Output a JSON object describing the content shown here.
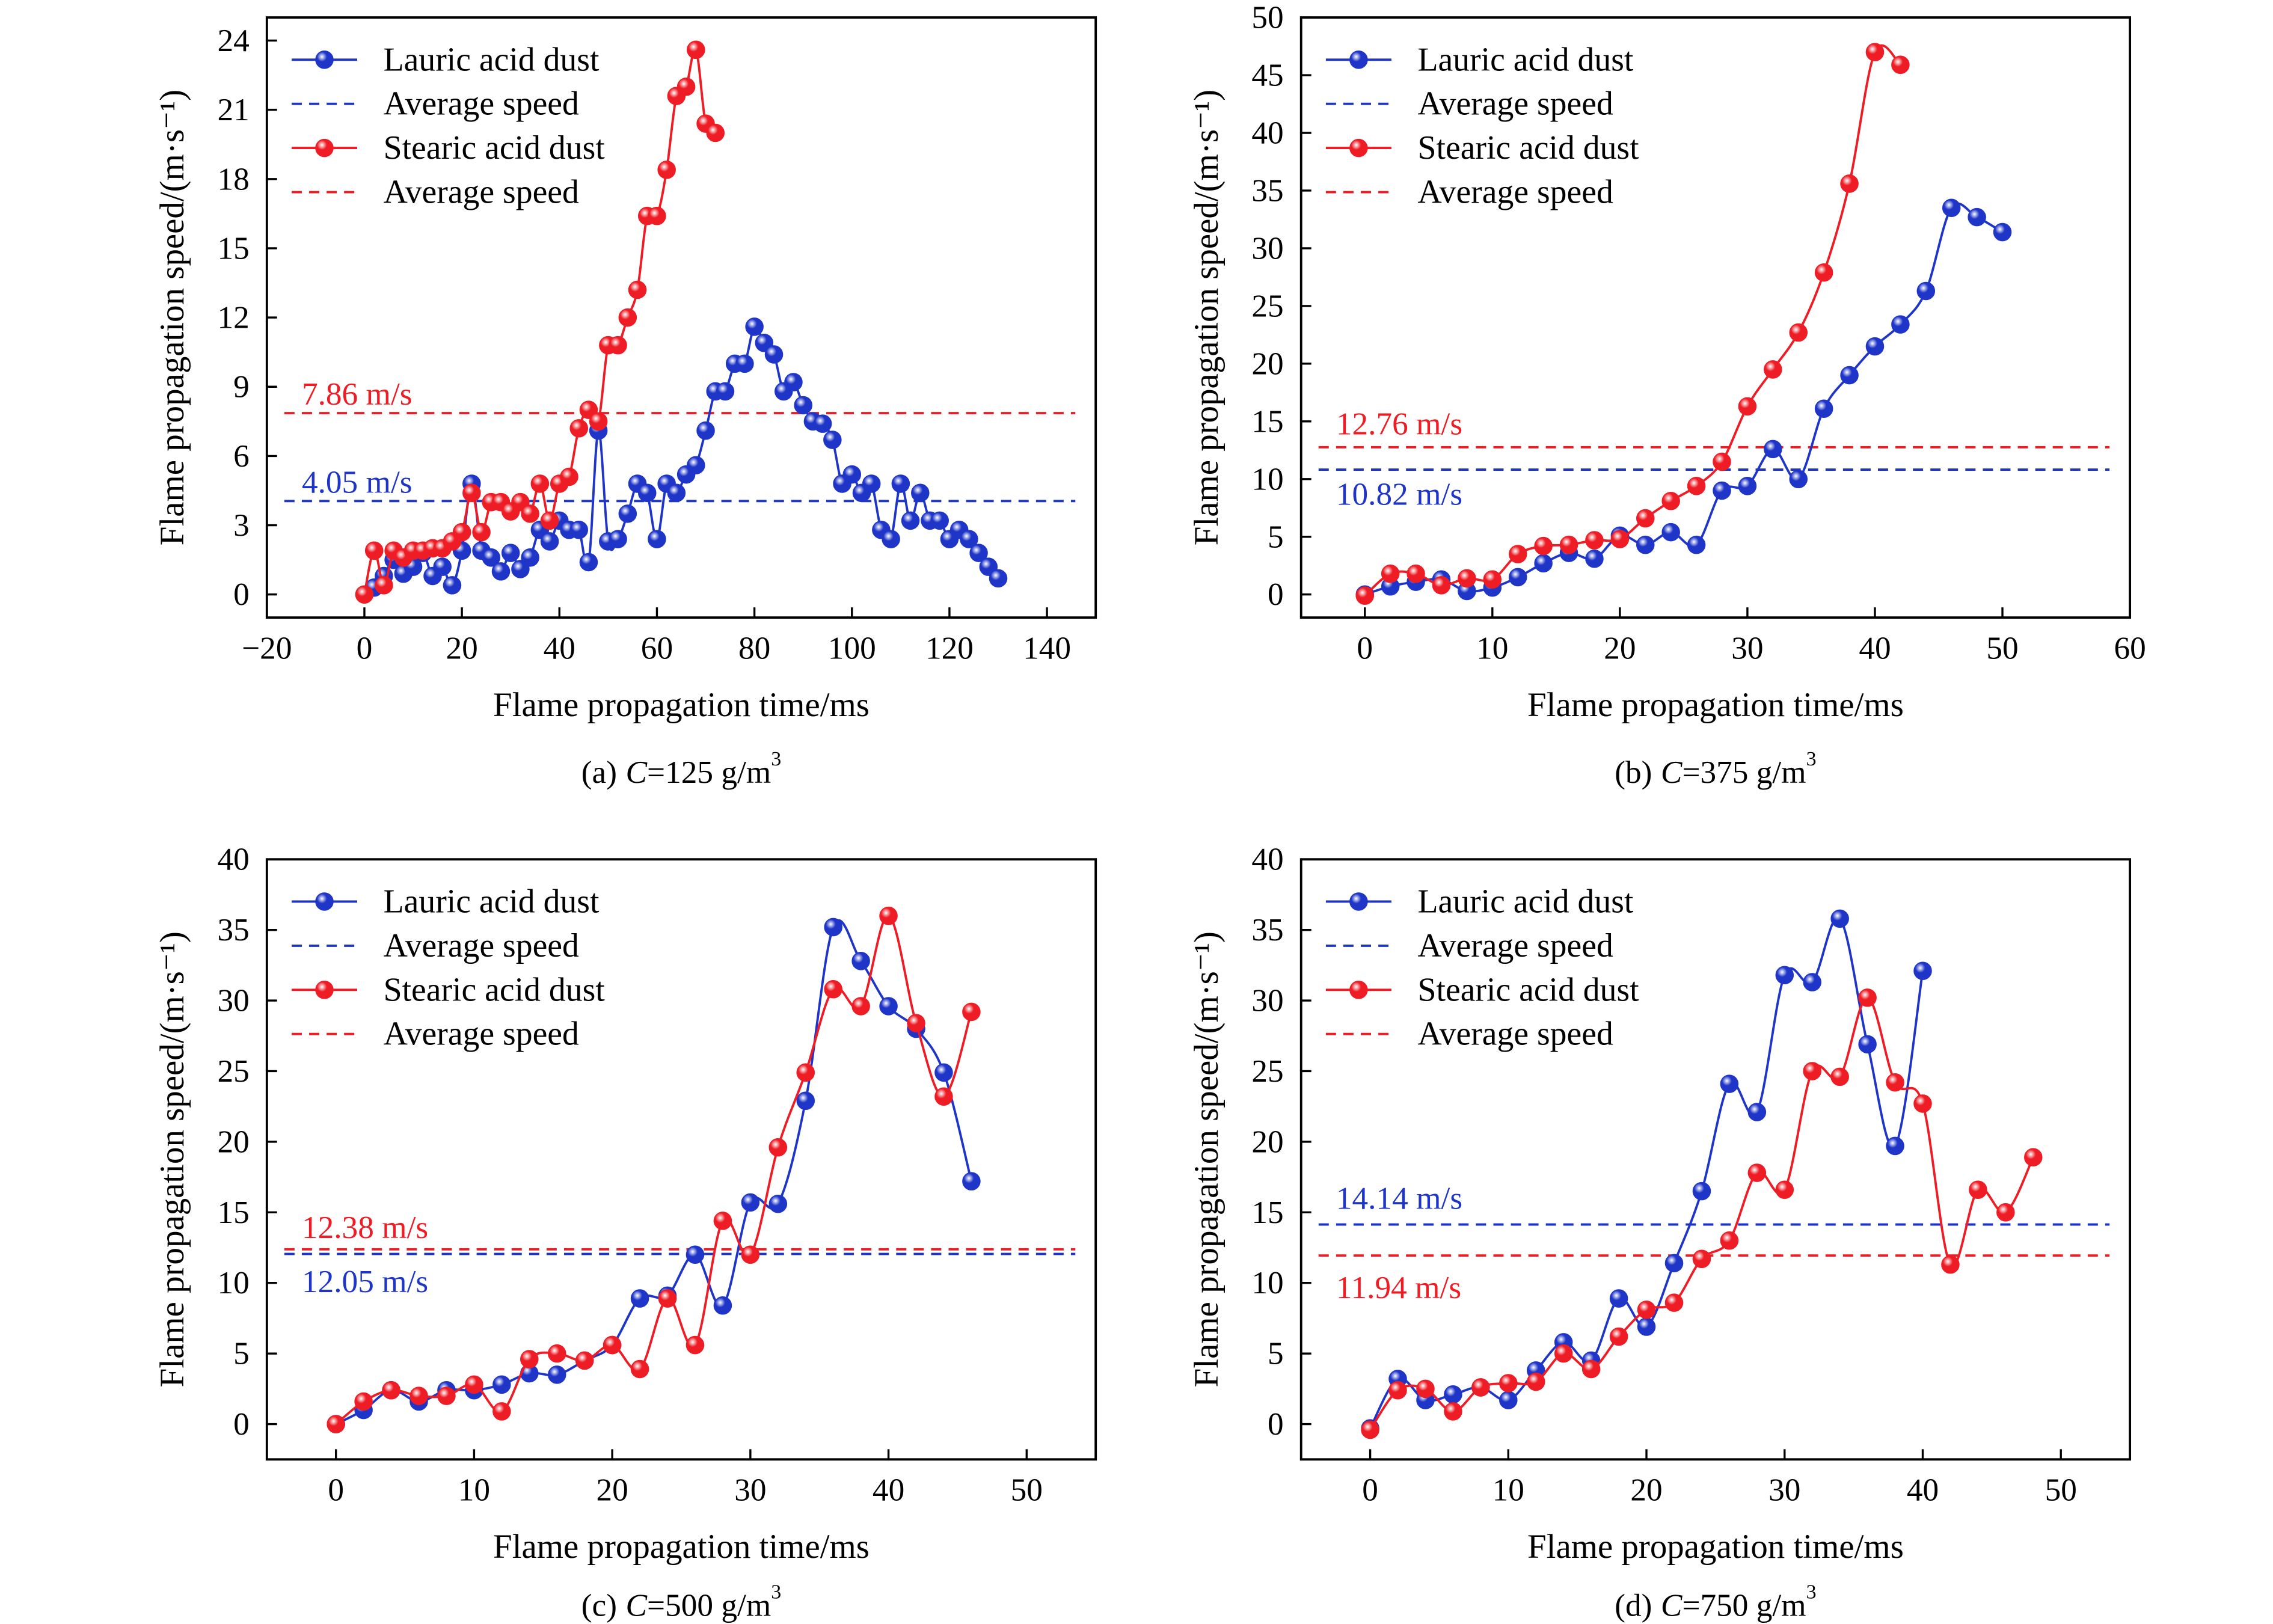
{
  "chart_data": [
    {
      "type": "line",
      "xlabel": "Flame propagation time/ms",
      "ylabel": "Flame propagation speed/(m·s⁻¹)",
      "xlim": [
        -20,
        150
      ],
      "ylim": [
        -1,
        25
      ],
      "xticks": [
        "−20",
        "0",
        "20",
        "40",
        "60",
        "80",
        "100",
        "120",
        "140"
      ],
      "yticks": [
        "0",
        "3",
        "6",
        "9",
        "12",
        "15",
        "18",
        "21",
        "24"
      ],
      "grid": false,
      "legend": {
        "placement": "top-left"
      },
      "series": [
        {
          "name": "Lauric acid dust",
          "color": "#1f35c8",
          "x": [
            2,
            4,
            6,
            8,
            10,
            12,
            14,
            16,
            18,
            20,
            22,
            24,
            26,
            28,
            30,
            32,
            34,
            36,
            38,
            40,
            42,
            44,
            46,
            48,
            50,
            52,
            54,
            56,
            58,
            60,
            62,
            64,
            66,
            68,
            70,
            72,
            74,
            76,
            78,
            80,
            82,
            84,
            86,
            88,
            90,
            92,
            94,
            96,
            98,
            100,
            102,
            104,
            106,
            108,
            110,
            112,
            114,
            116,
            118,
            120,
            122,
            124,
            126,
            128,
            130
          ],
          "values": [
            0.3,
            0.8,
            1.5,
            0.9,
            1.2,
            1.8,
            0.8,
            1.2,
            0.4,
            1.9,
            4.8,
            1.9,
            1.6,
            1.0,
            1.8,
            1.1,
            1.6,
            2.8,
            2.3,
            3.2,
            2.8,
            2.8,
            1.4,
            7.1,
            2.3,
            2.4,
            3.5,
            4.8,
            4.4,
            2.4,
            4.8,
            4.4,
            5.2,
            5.6,
            7.1,
            8.8,
            8.8,
            10.0,
            10.0,
            11.6,
            10.9,
            10.4,
            8.8,
            9.2,
            8.2,
            7.5,
            7.4,
            6.7,
            4.8,
            5.2,
            4.4,
            4.8,
            2.8,
            2.4,
            4.8,
            3.2,
            4.4,
            3.2,
            3.2,
            2.4,
            2.8,
            2.4,
            1.8,
            1.2,
            0.7
          ],
          "average": {
            "name": "Average speed",
            "value": 4.05,
            "label": "4.05 m/s"
          }
        },
        {
          "name": "Stearic acid dust",
          "color": "#ee1c25",
          "x": [
            0,
            2,
            4,
            6,
            8,
            10,
            12,
            14,
            16,
            18,
            20,
            22,
            24,
            26,
            28,
            30,
            32,
            34,
            36,
            38,
            40,
            42,
            44,
            46,
            48,
            50,
            52,
            54,
            56,
            58,
            60,
            62,
            64,
            66,
            68,
            70,
            72
          ],
          "values": [
            0,
            1.9,
            0.4,
            1.9,
            1.6,
            1.9,
            1.9,
            2.0,
            2.0,
            2.3,
            2.7,
            4.4,
            2.7,
            4.0,
            4.0,
            3.6,
            4.0,
            3.5,
            4.8,
            3.2,
            4.8,
            5.1,
            7.2,
            8.0,
            7.5,
            10.8,
            10.8,
            12.0,
            13.2,
            16.4,
            16.4,
            18.4,
            21.6,
            22.0,
            23.6,
            20.4,
            20.0
          ],
          "average": {
            "name": "Average speed",
            "value": 7.86,
            "label": "7.86 m/s"
          }
        }
      ],
      "caption": {
        "label": "(a)",
        "variable": "C",
        "value": "=125 g/m",
        "exponent": "3"
      }
    },
    {
      "type": "line",
      "xlabel": "Flame propagation time/ms",
      "ylabel": "Flame propagation speed/(m·s⁻¹)",
      "xlim": [
        -5,
        60
      ],
      "ylim": [
        -2,
        50
      ],
      "xticks": [
        "0",
        "10",
        "20",
        "30",
        "40",
        "50",
        "60"
      ],
      "yticks": [
        "0",
        "5",
        "10",
        "15",
        "20",
        "25",
        "30",
        "35",
        "40",
        "45",
        "50"
      ],
      "grid": false,
      "legend": {
        "placement": "top-left"
      },
      "series": [
        {
          "name": "Lauric acid dust",
          "color": "#1f35c8",
          "x": [
            0,
            2,
            4,
            6,
            8,
            10,
            12,
            14,
            16,
            18,
            20,
            22,
            24,
            26,
            28,
            30,
            32,
            34,
            36,
            38,
            40,
            42,
            44,
            46,
            48,
            50
          ],
          "values": [
            0,
            0.7,
            1.1,
            1.3,
            0.3,
            0.6,
            1.5,
            2.7,
            3.6,
            3.1,
            5.1,
            4.3,
            5.4,
            4.3,
            9.0,
            9.4,
            12.6,
            10.0,
            16.1,
            19.0,
            21.5,
            23.4,
            26.3,
            33.5,
            32.7,
            31.4
          ],
          "average": {
            "name": "Average speed",
            "value": 10.82,
            "label": "10.82 m/s"
          }
        },
        {
          "name": "Stearic acid dust",
          "color": "#ee1c25",
          "x": [
            0,
            2,
            4,
            6,
            8,
            10,
            12,
            14,
            16,
            18,
            20,
            22,
            24,
            26,
            28,
            30,
            32,
            34,
            36,
            38,
            40,
            42
          ],
          "values": [
            -0.1,
            1.8,
            1.8,
            0.8,
            1.4,
            1.3,
            3.5,
            4.2,
            4.3,
            4.7,
            4.8,
            6.6,
            8.1,
            9.4,
            11.5,
            16.3,
            19.5,
            22.7,
            27.9,
            35.6,
            47.0,
            45.9
          ],
          "average": {
            "name": "Average speed",
            "value": 12.76,
            "label": "12.76 m/s"
          }
        }
      ],
      "caption": {
        "label": "(b)",
        "variable": "C",
        "value": "=375 g/m",
        "exponent": "3"
      }
    },
    {
      "type": "line",
      "xlabel": "Flame propagation time/ms",
      "ylabel": "Flame propagation speed/(m·s⁻¹)",
      "xlim": [
        -5,
        55
      ],
      "ylim": [
        -2.5,
        40
      ],
      "xticks": [
        "0",
        "10",
        "20",
        "30",
        "40",
        "50"
      ],
      "yticks": [
        "0",
        "5",
        "10",
        "15",
        "20",
        "25",
        "30",
        "35",
        "40"
      ],
      "grid": false,
      "legend": {
        "placement": "top-left"
      },
      "series": [
        {
          "name": "Lauric acid dust",
          "color": "#1f35c8",
          "x": [
            0,
            2,
            4,
            6,
            8,
            10,
            12,
            14,
            16,
            18,
            20,
            22,
            24,
            26,
            28,
            30,
            32,
            34,
            36,
            38,
            40,
            42,
            44,
            46
          ],
          "values": [
            0,
            1.0,
            2.4,
            1.6,
            2.4,
            2.4,
            2.8,
            3.6,
            3.5,
            4.5,
            5.6,
            8.9,
            9.1,
            12.0,
            8.4,
            15.7,
            15.6,
            22.9,
            35.2,
            32.8,
            29.6,
            28.0,
            24.9,
            17.2
          ],
          "average": {
            "name": "Average speed",
            "value": 12.05,
            "label": "12.05 m/s"
          }
        },
        {
          "name": "Stearic acid dust",
          "color": "#ee1c25",
          "x": [
            0,
            2,
            4,
            6,
            8,
            10,
            12,
            14,
            16,
            18,
            20,
            22,
            24,
            26,
            28,
            30,
            32,
            34,
            36,
            38,
            40,
            42,
            44,
            46
          ],
          "values": [
            0,
            1.6,
            2.4,
            2.0,
            2.0,
            2.8,
            0.9,
            4.6,
            5.0,
            4.5,
            5.6,
            3.9,
            8.9,
            5.6,
            14.4,
            12.0,
            19.6,
            24.9,
            30.8,
            29.6,
            36.0,
            28.4,
            23.2,
            29.2
          ],
          "average": {
            "name": "Average speed",
            "value": 12.38,
            "label": "12.38 m/s"
          }
        }
      ],
      "caption": {
        "label": "(c)",
        "variable": "C",
        "value": "=500 g/m",
        "exponent": "3"
      }
    },
    {
      "type": "line",
      "xlabel": "Flame propagation time/ms",
      "ylabel": "Flame propagation speed/(m·s⁻¹)",
      "xlim": [
        -5,
        55
      ],
      "ylim": [
        -2.5,
        40
      ],
      "xticks": [
        "0",
        "10",
        "20",
        "30",
        "40",
        "50"
      ],
      "yticks": [
        "0",
        "5",
        "10",
        "15",
        "20",
        "25",
        "30",
        "35",
        "40"
      ],
      "grid": false,
      "legend": {
        "placement": "top-left"
      },
      "series": [
        {
          "name": "Lauric acid dust",
          "color": "#1f35c8",
          "x": [
            0,
            2,
            4,
            6,
            8,
            10,
            12,
            14,
            16,
            18,
            20,
            22,
            24,
            26,
            28,
            30,
            32,
            34,
            36,
            38,
            40
          ],
          "values": [
            -0.3,
            3.2,
            1.7,
            2.1,
            2.6,
            1.7,
            3.8,
            5.8,
            4.5,
            8.9,
            6.9,
            11.4,
            16.5,
            24.1,
            22.1,
            31.8,
            31.3,
            35.8,
            26.9,
            19.7,
            32.1
          ],
          "average": {
            "name": "Average speed",
            "value": 14.14,
            "label": "14.14 m/s"
          }
        },
        {
          "name": "Stearic acid dust",
          "color": "#ee1c25",
          "x": [
            0,
            2,
            4,
            6,
            8,
            10,
            12,
            14,
            16,
            18,
            20,
            22,
            24,
            26,
            28,
            30,
            32,
            34,
            36,
            38,
            40,
            42,
            44,
            46,
            48
          ],
          "values": [
            -0.4,
            2.4,
            2.5,
            0.9,
            2.6,
            2.9,
            3.0,
            5.0,
            3.9,
            6.2,
            8.1,
            8.6,
            11.7,
            13.0,
            17.8,
            16.6,
            25.0,
            24.6,
            30.2,
            24.2,
            22.7,
            11.3,
            16.6,
            15.0,
            18.9
          ],
          "average": {
            "name": "Average speed",
            "value": 11.94,
            "label": "11.94 m/s"
          }
        }
      ],
      "caption": {
        "label": "(d)",
        "variable": "C",
        "value": "=750 g/m",
        "exponent": "3"
      }
    }
  ]
}
